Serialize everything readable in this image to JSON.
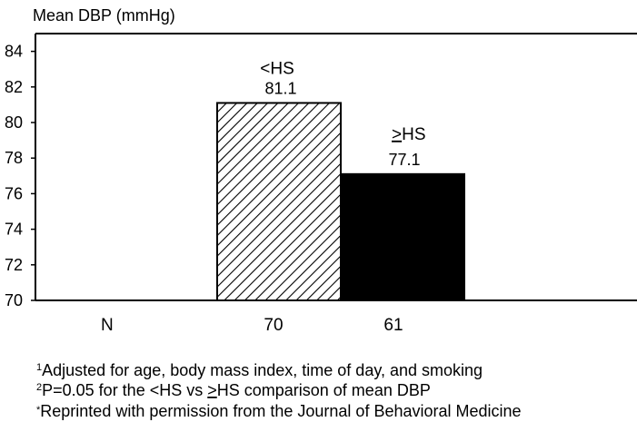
{
  "chart_data": {
    "type": "bar",
    "ylabel": "Mean DBP (mmHg)",
    "ylim": [
      70,
      85
    ],
    "yticks": [
      70,
      72,
      74,
      76,
      78,
      80,
      82,
      84
    ],
    "grid": false,
    "series": [
      {
        "name": "<HS",
        "n": "70",
        "value": 81.1,
        "value_label": "81.1",
        "pattern": "hatched"
      },
      {
        "name": "≥HS",
        "name_display": "HS",
        "name_prefix": ">",
        "n": "61",
        "value": 77.1,
        "value_label": "77.1",
        "pattern": "solid",
        "color": "#000000"
      }
    ],
    "x_row_label": "N"
  },
  "footnotes": [
    {
      "mark": "1",
      "text": "Adjusted for age, body mass index, time of day, and smoking"
    },
    {
      "mark": "2",
      "text_before": "P=0.05 for the <HS vs ",
      "underlined": ">",
      "text_after": "HS comparison of mean DBP"
    },
    {
      "mark": "*",
      "text": "Reprinted with permission from the Journal of Behavioral Medicine"
    }
  ]
}
